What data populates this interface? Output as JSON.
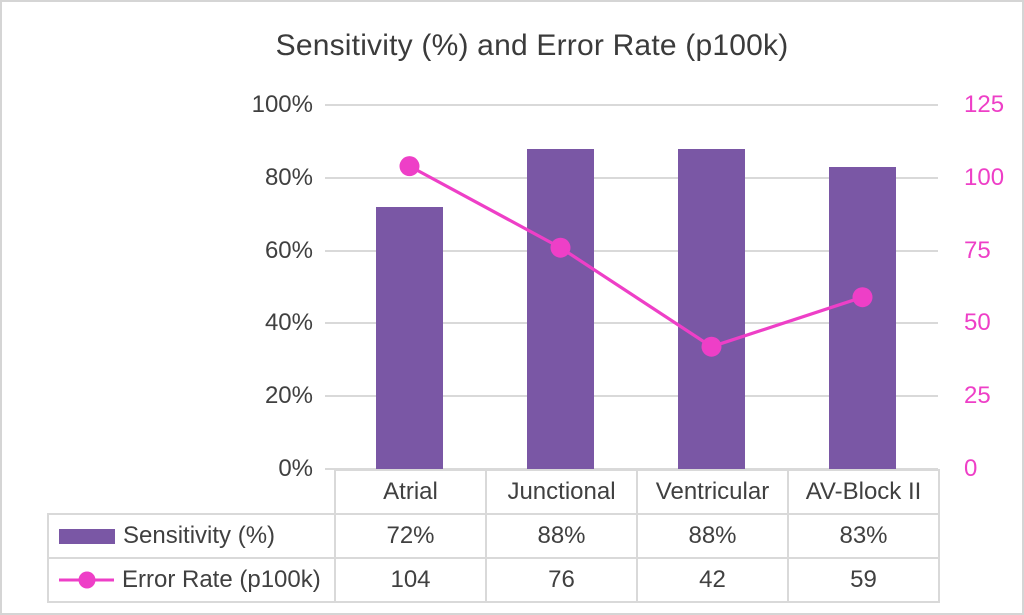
{
  "chart_data": {
    "type": "combo-bar-line",
    "title": "Sensitivity (%) and Error Rate (p100k)",
    "categories": [
      "Atrial",
      "Junctional",
      "Ventricular",
      "AV-Block II"
    ],
    "series": [
      {
        "name": "Sensitivity (%)",
        "type": "bar",
        "axis": "left",
        "values": [
          72,
          88,
          88,
          83
        ],
        "labels": [
          "72%",
          "88%",
          "88%",
          "83%"
        ],
        "color": "#7a57a5"
      },
      {
        "name": "Error Rate (p100k)",
        "type": "line",
        "axis": "right",
        "values": [
          104,
          76,
          42,
          59
        ],
        "labels": [
          "104",
          "76",
          "42",
          "59"
        ],
        "color": "#ee3fc7"
      }
    ],
    "left_axis": {
      "min": 0,
      "max": 100,
      "tick_labels": [
        "100%",
        "80%",
        "60%",
        "40%",
        "20%",
        "0%"
      ]
    },
    "right_axis": {
      "min": 0,
      "max": 125,
      "tick_labels": [
        "125",
        "100",
        "75",
        "50",
        "25",
        "0"
      ]
    },
    "grid": true,
    "legend_position": "data-table-left"
  },
  "colors": {
    "bar": "#7a57a5",
    "line": "#ee3fc7",
    "gridline": "#d9d9d9",
    "frame_border": "#d5d5d5",
    "text": "#404040",
    "title": "#3b3b3b"
  }
}
